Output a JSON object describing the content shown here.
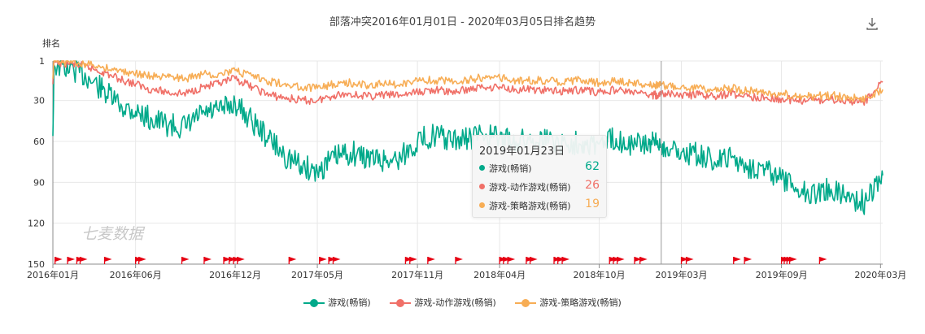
{
  "header": {
    "title": "部落冲突2016年01月01日 - 2020年03月05日排名趋势",
    "download_icon": "download-icon"
  },
  "watermark": "七麦数据",
  "colors": {
    "grid": "#e8e8e8",
    "axis": "#8c8c8c",
    "flag": "#e60012",
    "accent": "#00a98a"
  },
  "chart_data": {
    "type": "line",
    "title": "部落冲突2016年01月01日 - 2020年03月05日排名趋势",
    "ylabel": "排名",
    "y_inverted": true,
    "ylim": [
      1,
      150
    ],
    "yticks": [
      "1",
      "30",
      "60",
      "90",
      "120",
      "150"
    ],
    "xlim": [
      "2016-01-01",
      "2020-03-05"
    ],
    "xticks": [
      {
        "date": "2016-01-01",
        "label": "2016年01月"
      },
      {
        "date": "2016-06-01",
        "label": "2016年06月"
      },
      {
        "date": "2016-12-01",
        "label": "2016年12月"
      },
      {
        "date": "2017-05-01",
        "label": "2017年05月"
      },
      {
        "date": "2017-11-01",
        "label": "2017年11月"
      },
      {
        "date": "2018-04-01",
        "label": "2018年04月"
      },
      {
        "date": "2018-10-01",
        "label": "2018年10月"
      },
      {
        "date": "2019-03-01",
        "label": "2019年03月"
      },
      {
        "date": "2019-09-01",
        "label": "2019年09月"
      },
      {
        "date": "2020-03-01",
        "label": "2020年03月"
      }
    ],
    "grid": true,
    "legend_position": "bottom",
    "series": [
      {
        "name": "游戏(畅销)",
        "color": "#00a98a",
        "points": [
          [
            "2016-01-01",
            56
          ],
          [
            "2016-01-03",
            4
          ],
          [
            "2016-02-01",
            6
          ],
          [
            "2016-03-01",
            12
          ],
          [
            "2016-04-01",
            22
          ],
          [
            "2016-05-01",
            33
          ],
          [
            "2016-06-01",
            38
          ],
          [
            "2016-07-01",
            44
          ],
          [
            "2016-08-01",
            48
          ],
          [
            "2016-09-01",
            50
          ],
          [
            "2016-10-01",
            40
          ],
          [
            "2016-11-01",
            38
          ],
          [
            "2016-12-01",
            32
          ],
          [
            "2017-01-01",
            45
          ],
          [
            "2017-02-01",
            58
          ],
          [
            "2017-03-01",
            70
          ],
          [
            "2017-04-01",
            78
          ],
          [
            "2017-05-01",
            82
          ],
          [
            "2017-06-01",
            72
          ],
          [
            "2017-07-01",
            68
          ],
          [
            "2017-08-01",
            72
          ],
          [
            "2017-09-01",
            74
          ],
          [
            "2017-10-01",
            72
          ],
          [
            "2017-11-01",
            60
          ],
          [
            "2017-12-01",
            55
          ],
          [
            "2018-01-01",
            60
          ],
          [
            "2018-02-01",
            58
          ],
          [
            "2018-03-01",
            55
          ],
          [
            "2018-04-01",
            58
          ],
          [
            "2018-05-01",
            60
          ],
          [
            "2018-06-01",
            58
          ],
          [
            "2018-07-01",
            58
          ],
          [
            "2018-08-01",
            62
          ],
          [
            "2018-09-01",
            60
          ],
          [
            "2018-10-01",
            62
          ],
          [
            "2018-11-01",
            58
          ],
          [
            "2018-12-01",
            62
          ],
          [
            "2019-01-01",
            62
          ],
          [
            "2019-01-23",
            62
          ],
          [
            "2019-02-01",
            65
          ],
          [
            "2019-03-01",
            68
          ],
          [
            "2019-04-01",
            70
          ],
          [
            "2019-05-01",
            75
          ],
          [
            "2019-06-01",
            72
          ],
          [
            "2019-07-01",
            78
          ],
          [
            "2019-08-01",
            80
          ],
          [
            "2019-09-01",
            88
          ],
          [
            "2019-10-01",
            95
          ],
          [
            "2019-11-01",
            98
          ],
          [
            "2019-12-01",
            95
          ],
          [
            "2020-01-01",
            100
          ],
          [
            "2020-02-01",
            105
          ],
          [
            "2020-03-05",
            85
          ]
        ]
      },
      {
        "name": "游戏-动作游戏(畅销)",
        "color": "#f07068",
        "points": [
          [
            "2016-01-01",
            18
          ],
          [
            "2016-01-03",
            2
          ],
          [
            "2016-02-01",
            3
          ],
          [
            "2016-03-01",
            5
          ],
          [
            "2016-04-01",
            9
          ],
          [
            "2016-05-01",
            14
          ],
          [
            "2016-06-01",
            18
          ],
          [
            "2016-07-01",
            22
          ],
          [
            "2016-08-01",
            24
          ],
          [
            "2016-09-01",
            25
          ],
          [
            "2016-10-01",
            20
          ],
          [
            "2016-11-01",
            18
          ],
          [
            "2016-12-01",
            14
          ],
          [
            "2017-01-01",
            20
          ],
          [
            "2017-02-01",
            26
          ],
          [
            "2017-03-01",
            28
          ],
          [
            "2017-04-01",
            30
          ],
          [
            "2017-05-01",
            30
          ],
          [
            "2017-06-01",
            26
          ],
          [
            "2017-07-01",
            25
          ],
          [
            "2017-08-01",
            27
          ],
          [
            "2017-09-01",
            26
          ],
          [
            "2017-10-01",
            26
          ],
          [
            "2017-11-01",
            24
          ],
          [
            "2017-12-01",
            22
          ],
          [
            "2018-01-01",
            24
          ],
          [
            "2018-02-01",
            22
          ],
          [
            "2018-03-01",
            20
          ],
          [
            "2018-04-01",
            20
          ],
          [
            "2018-05-01",
            22
          ],
          [
            "2018-06-01",
            22
          ],
          [
            "2018-07-01",
            23
          ],
          [
            "2018-08-01",
            23
          ],
          [
            "2018-09-01",
            22
          ],
          [
            "2018-10-01",
            24
          ],
          [
            "2018-11-01",
            22
          ],
          [
            "2018-12-01",
            24
          ],
          [
            "2019-01-01",
            26
          ],
          [
            "2019-01-23",
            26
          ],
          [
            "2019-02-01",
            25
          ],
          [
            "2019-03-01",
            26
          ],
          [
            "2019-04-01",
            26
          ],
          [
            "2019-05-01",
            27
          ],
          [
            "2019-06-01",
            25
          ],
          [
            "2019-07-01",
            27
          ],
          [
            "2019-08-01",
            28
          ],
          [
            "2019-09-01",
            29
          ],
          [
            "2019-10-01",
            30
          ],
          [
            "2019-11-01",
            30
          ],
          [
            "2019-12-01",
            29
          ],
          [
            "2020-01-01",
            30
          ],
          [
            "2020-02-01",
            31
          ],
          [
            "2020-03-05",
            16
          ]
        ]
      },
      {
        "name": "游戏-策略游戏(畅销)",
        "color": "#f7ad55",
        "points": [
          [
            "2016-01-01",
            14
          ],
          [
            "2016-01-03",
            1
          ],
          [
            "2016-02-01",
            2
          ],
          [
            "2016-03-01",
            3
          ],
          [
            "2016-04-01",
            5
          ],
          [
            "2016-05-01",
            8
          ],
          [
            "2016-06-01",
            10
          ],
          [
            "2016-07-01",
            12
          ],
          [
            "2016-08-01",
            13
          ],
          [
            "2016-09-01",
            14
          ],
          [
            "2016-10-01",
            11
          ],
          [
            "2016-11-01",
            10
          ],
          [
            "2016-12-01",
            8
          ],
          [
            "2017-01-01",
            12
          ],
          [
            "2017-02-01",
            16
          ],
          [
            "2017-03-01",
            18
          ],
          [
            "2017-04-01",
            20
          ],
          [
            "2017-05-01",
            21
          ],
          [
            "2017-06-01",
            18
          ],
          [
            "2017-07-01",
            17
          ],
          [
            "2017-08-01",
            19
          ],
          [
            "2017-09-01",
            18
          ],
          [
            "2017-10-01",
            18
          ],
          [
            "2017-11-01",
            16
          ],
          [
            "2017-12-01",
            15
          ],
          [
            "2018-01-01",
            16
          ],
          [
            "2018-02-01",
            15
          ],
          [
            "2018-03-01",
            13
          ],
          [
            "2018-04-01",
            13
          ],
          [
            "2018-05-01",
            15
          ],
          [
            "2018-06-01",
            15
          ],
          [
            "2018-07-01",
            16
          ],
          [
            "2018-08-01",
            16
          ],
          [
            "2018-09-01",
            15
          ],
          [
            "2018-10-01",
            17
          ],
          [
            "2018-11-01",
            16
          ],
          [
            "2018-12-01",
            17
          ],
          [
            "2019-01-01",
            19
          ],
          [
            "2019-01-23",
            19
          ],
          [
            "2019-02-01",
            19
          ],
          [
            "2019-03-01",
            20
          ],
          [
            "2019-04-01",
            21
          ],
          [
            "2019-05-01",
            22
          ],
          [
            "2019-06-01",
            21
          ],
          [
            "2019-07-01",
            23
          ],
          [
            "2019-08-01",
            24
          ],
          [
            "2019-09-01",
            25
          ],
          [
            "2019-10-01",
            27
          ],
          [
            "2019-11-01",
            27
          ],
          [
            "2019-12-01",
            26
          ],
          [
            "2020-01-01",
            28
          ],
          [
            "2020-02-01",
            29
          ],
          [
            "2020-03-05",
            22
          ]
        ]
      }
    ],
    "flags": [
      "2016-01-05",
      "2016-01-28",
      "2016-02-14",
      "2016-02-20",
      "2016-04-05",
      "2016-06-01",
      "2016-06-07",
      "2016-08-25",
      "2016-10-05",
      "2016-11-10",
      "2016-11-20",
      "2016-11-28",
      "2016-12-05",
      "2017-03-10",
      "2017-05-05",
      "2017-05-22",
      "2017-05-30",
      "2017-10-10",
      "2017-10-18",
      "2017-11-20",
      "2018-01-10",
      "2018-04-01",
      "2018-04-08",
      "2018-04-16",
      "2018-05-20",
      "2018-05-27",
      "2018-07-10",
      "2018-07-17",
      "2018-07-25",
      "2018-10-20",
      "2018-10-27",
      "2018-11-03",
      "2018-12-05",
      "2018-12-15",
      "2019-03-01",
      "2019-03-10",
      "2019-06-05",
      "2019-06-25",
      "2019-09-01",
      "2019-09-06",
      "2019-09-11",
      "2019-09-16",
      "2019-11-10"
    ],
    "tooltip": {
      "date": "2019-01-23",
      "title": "2019年01月23日",
      "rows": [
        {
          "name": "游戏(畅销)",
          "value": "62",
          "color": "#00a98a"
        },
        {
          "name": "游戏-动作游戏(畅销)",
          "value": "26",
          "color": "#f07068"
        },
        {
          "name": "游戏-策略游戏(畅销)",
          "value": "19",
          "color": "#f7ad55"
        }
      ]
    }
  }
}
